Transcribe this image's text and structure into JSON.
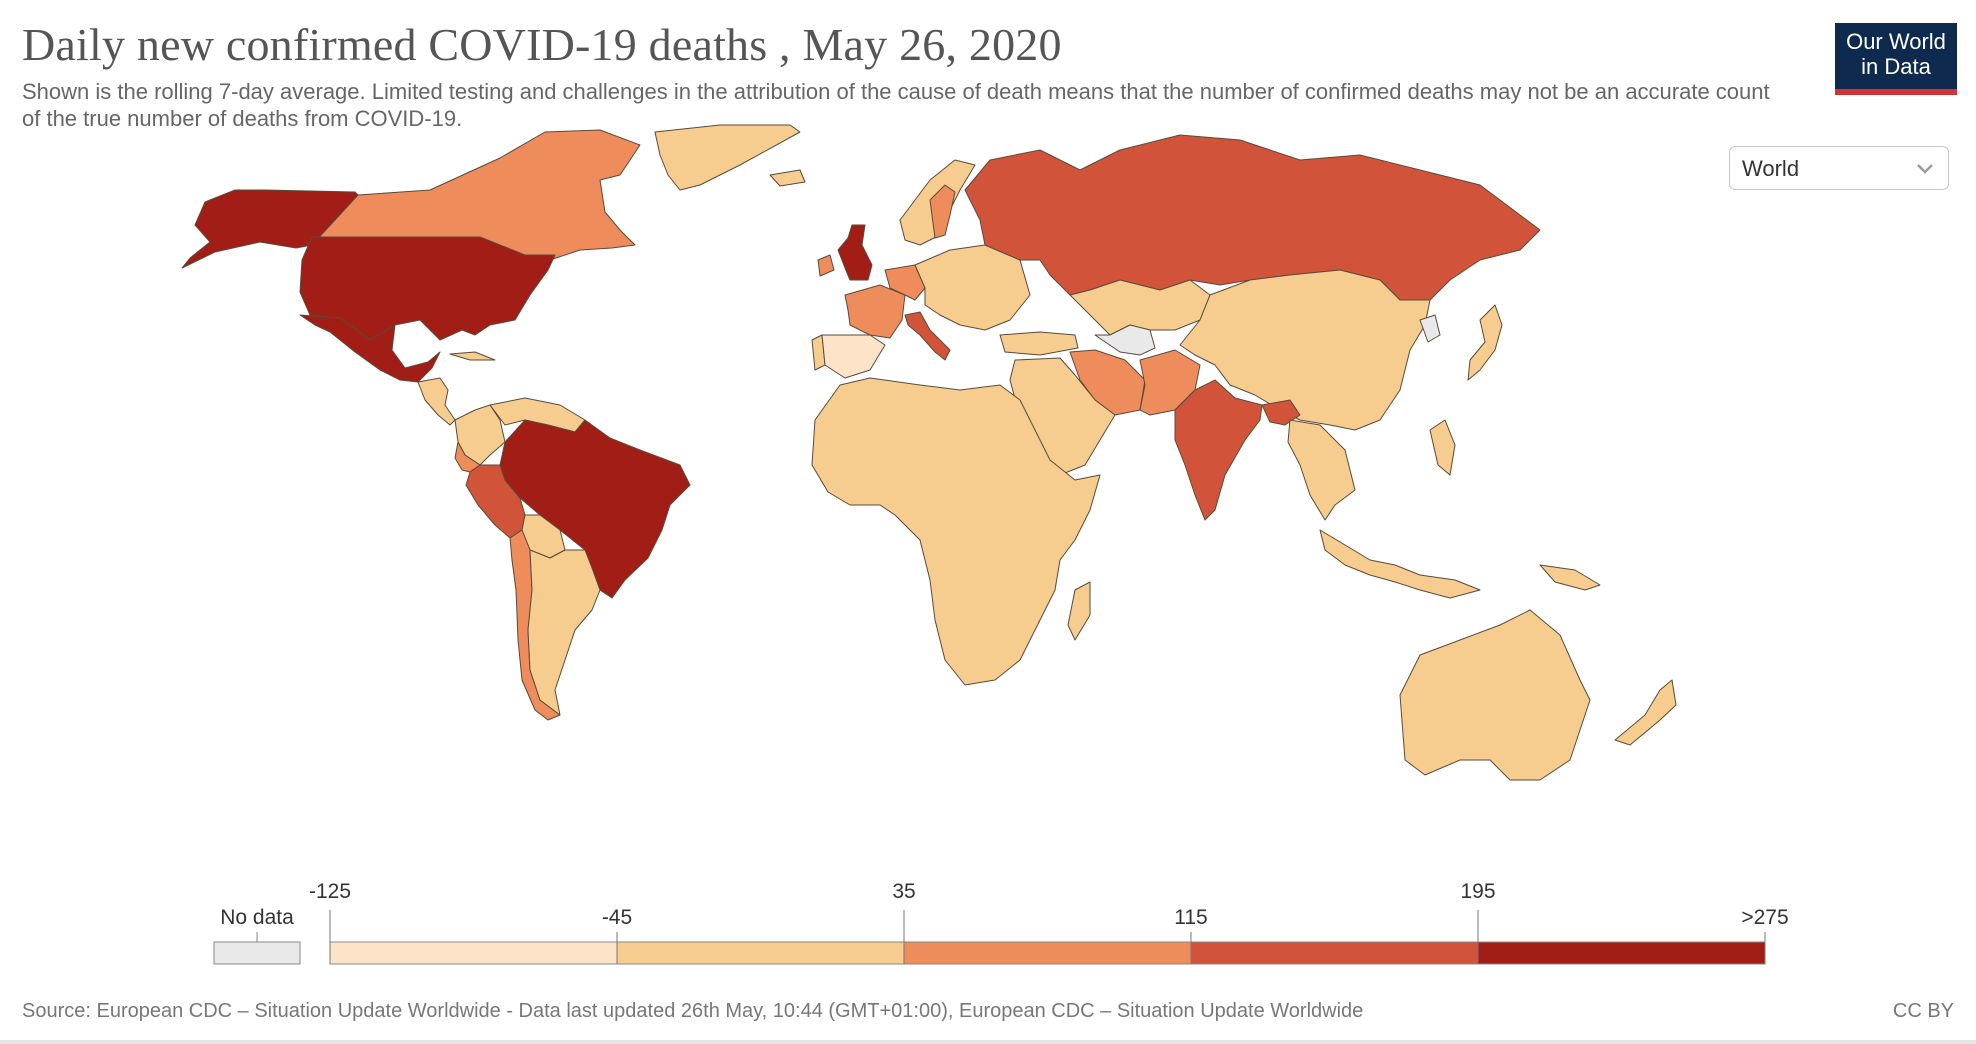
{
  "title": "Daily new confirmed COVID-19 deaths , May 26, 2020",
  "subtitle": "Shown is the rolling 7-day average. Limited testing and challenges in the attribution of the cause of death means that the number of confirmed deaths may not be an accurate count of the true number of deaths from COVID-19.",
  "logo": {
    "line1": "Our World",
    "line2": "in Data"
  },
  "region_selector": {
    "value": "World"
  },
  "legend": {
    "no_data_label": "No data",
    "breakpoints": [
      "-125",
      "-45",
      "35",
      "115",
      "195",
      ">275"
    ],
    "colors": [
      "#fde3c7",
      "#f6cd8f",
      "#ee8c5c",
      "#d1543a",
      "#a11d15"
    ],
    "no_data_color": "#e9e9e9"
  },
  "source": "Source: European CDC – Situation Update Worldwide - Data last updated 26th May, 10:44 (GMT+01:00), European CDC – Situation Update Worldwide",
  "license": "CC BY",
  "map_data": {
    "category_colors": {
      "a": "#fde3c7",
      "b": "#f6cd8f",
      "c": "#ee8c5c",
      "d": "#d1543a",
      "e": "#a11d15",
      "n": "#e9e9e9"
    },
    "regions": [
      {
        "name": "Alaska (USA)",
        "cat": "e"
      },
      {
        "name": "Canada",
        "cat": "c"
      },
      {
        "name": "Greenland",
        "cat": "b"
      },
      {
        "name": "United States",
        "cat": "e"
      },
      {
        "name": "Mexico",
        "cat": "e"
      },
      {
        "name": "Central America",
        "cat": "b"
      },
      {
        "name": "Cuba",
        "cat": "b"
      },
      {
        "name": "Colombia",
        "cat": "b"
      },
      {
        "name": "Venezuela",
        "cat": "b"
      },
      {
        "name": "Ecuador",
        "cat": "c"
      },
      {
        "name": "Peru",
        "cat": "d"
      },
      {
        "name": "Brazil",
        "cat": "e"
      },
      {
        "name": "Bolivia",
        "cat": "b"
      },
      {
        "name": "Chile",
        "cat": "c"
      },
      {
        "name": "Argentina",
        "cat": "b"
      },
      {
        "name": "Iceland",
        "cat": "b"
      },
      {
        "name": "United Kingdom",
        "cat": "e"
      },
      {
        "name": "Ireland",
        "cat": "c"
      },
      {
        "name": "Spain",
        "cat": "a"
      },
      {
        "name": "Portugal",
        "cat": "b"
      },
      {
        "name": "France",
        "cat": "c"
      },
      {
        "name": "Italy",
        "cat": "d"
      },
      {
        "name": "Germany",
        "cat": "c"
      },
      {
        "name": "Scandinavia",
        "cat": "b"
      },
      {
        "name": "Sweden",
        "cat": "c"
      },
      {
        "name": "Central Europe",
        "cat": "b"
      },
      {
        "name": "Russia",
        "cat": "d"
      },
      {
        "name": "Kazakhstan",
        "cat": "b"
      },
      {
        "name": "Turkmenistan",
        "cat": "n"
      },
      {
        "name": "China",
        "cat": "b"
      },
      {
        "name": "North Korea",
        "cat": "n"
      },
      {
        "name": "Japan",
        "cat": "b"
      },
      {
        "name": "Turkey",
        "cat": "b"
      },
      {
        "name": "Iran",
        "cat": "c"
      },
      {
        "name": "Middle East",
        "cat": "b"
      },
      {
        "name": "Pakistan",
        "cat": "c"
      },
      {
        "name": "India",
        "cat": "d"
      },
      {
        "name": "Bangladesh",
        "cat": "d"
      },
      {
        "name": "Southeast Asia",
        "cat": "b"
      },
      {
        "name": "Indonesia",
        "cat": "b"
      },
      {
        "name": "Philippines",
        "cat": "b"
      },
      {
        "name": "Papua New Guinea",
        "cat": "b"
      },
      {
        "name": "Africa",
        "cat": "b"
      },
      {
        "name": "Madagascar",
        "cat": "b"
      },
      {
        "name": "Australia",
        "cat": "b"
      },
      {
        "name": "New Zealand",
        "cat": "b"
      }
    ]
  }
}
